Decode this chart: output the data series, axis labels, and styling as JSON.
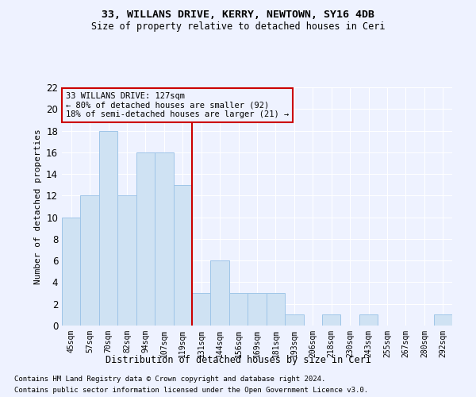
{
  "title1": "33, WILLANS DRIVE, KERRY, NEWTOWN, SY16 4DB",
  "title2": "Size of property relative to detached houses in Ceri",
  "xlabel": "Distribution of detached houses by size in Ceri",
  "ylabel": "Number of detached properties",
  "categories": [
    "45sqm",
    "57sqm",
    "70sqm",
    "82sqm",
    "94sqm",
    "107sqm",
    "119sqm",
    "131sqm",
    "144sqm",
    "156sqm",
    "169sqm",
    "181sqm",
    "193sqm",
    "206sqm",
    "218sqm",
    "230sqm",
    "243sqm",
    "255sqm",
    "267sqm",
    "280sqm",
    "292sqm"
  ],
  "values": [
    10,
    12,
    18,
    12,
    16,
    16,
    13,
    3,
    6,
    3,
    3,
    3,
    1,
    0,
    1,
    0,
    1,
    0,
    0,
    0,
    1
  ],
  "bar_color": "#cfe2f3",
  "bar_edge_color": "#9fc5e8",
  "marker_line_color": "#cc0000",
  "annotation_line1": "33 WILLANS DRIVE: 127sqm",
  "annotation_line2": "← 80% of detached houses are smaller (92)",
  "annotation_line3": "18% of semi-detached houses are larger (21) →",
  "ylim": [
    0,
    22
  ],
  "yticks": [
    0,
    2,
    4,
    6,
    8,
    10,
    12,
    14,
    16,
    18,
    20,
    22
  ],
  "footer1": "Contains HM Land Registry data © Crown copyright and database right 2024.",
  "footer2": "Contains public sector information licensed under the Open Government Licence v3.0.",
  "bg_color": "#eef2ff",
  "grid_color": "#ffffff"
}
